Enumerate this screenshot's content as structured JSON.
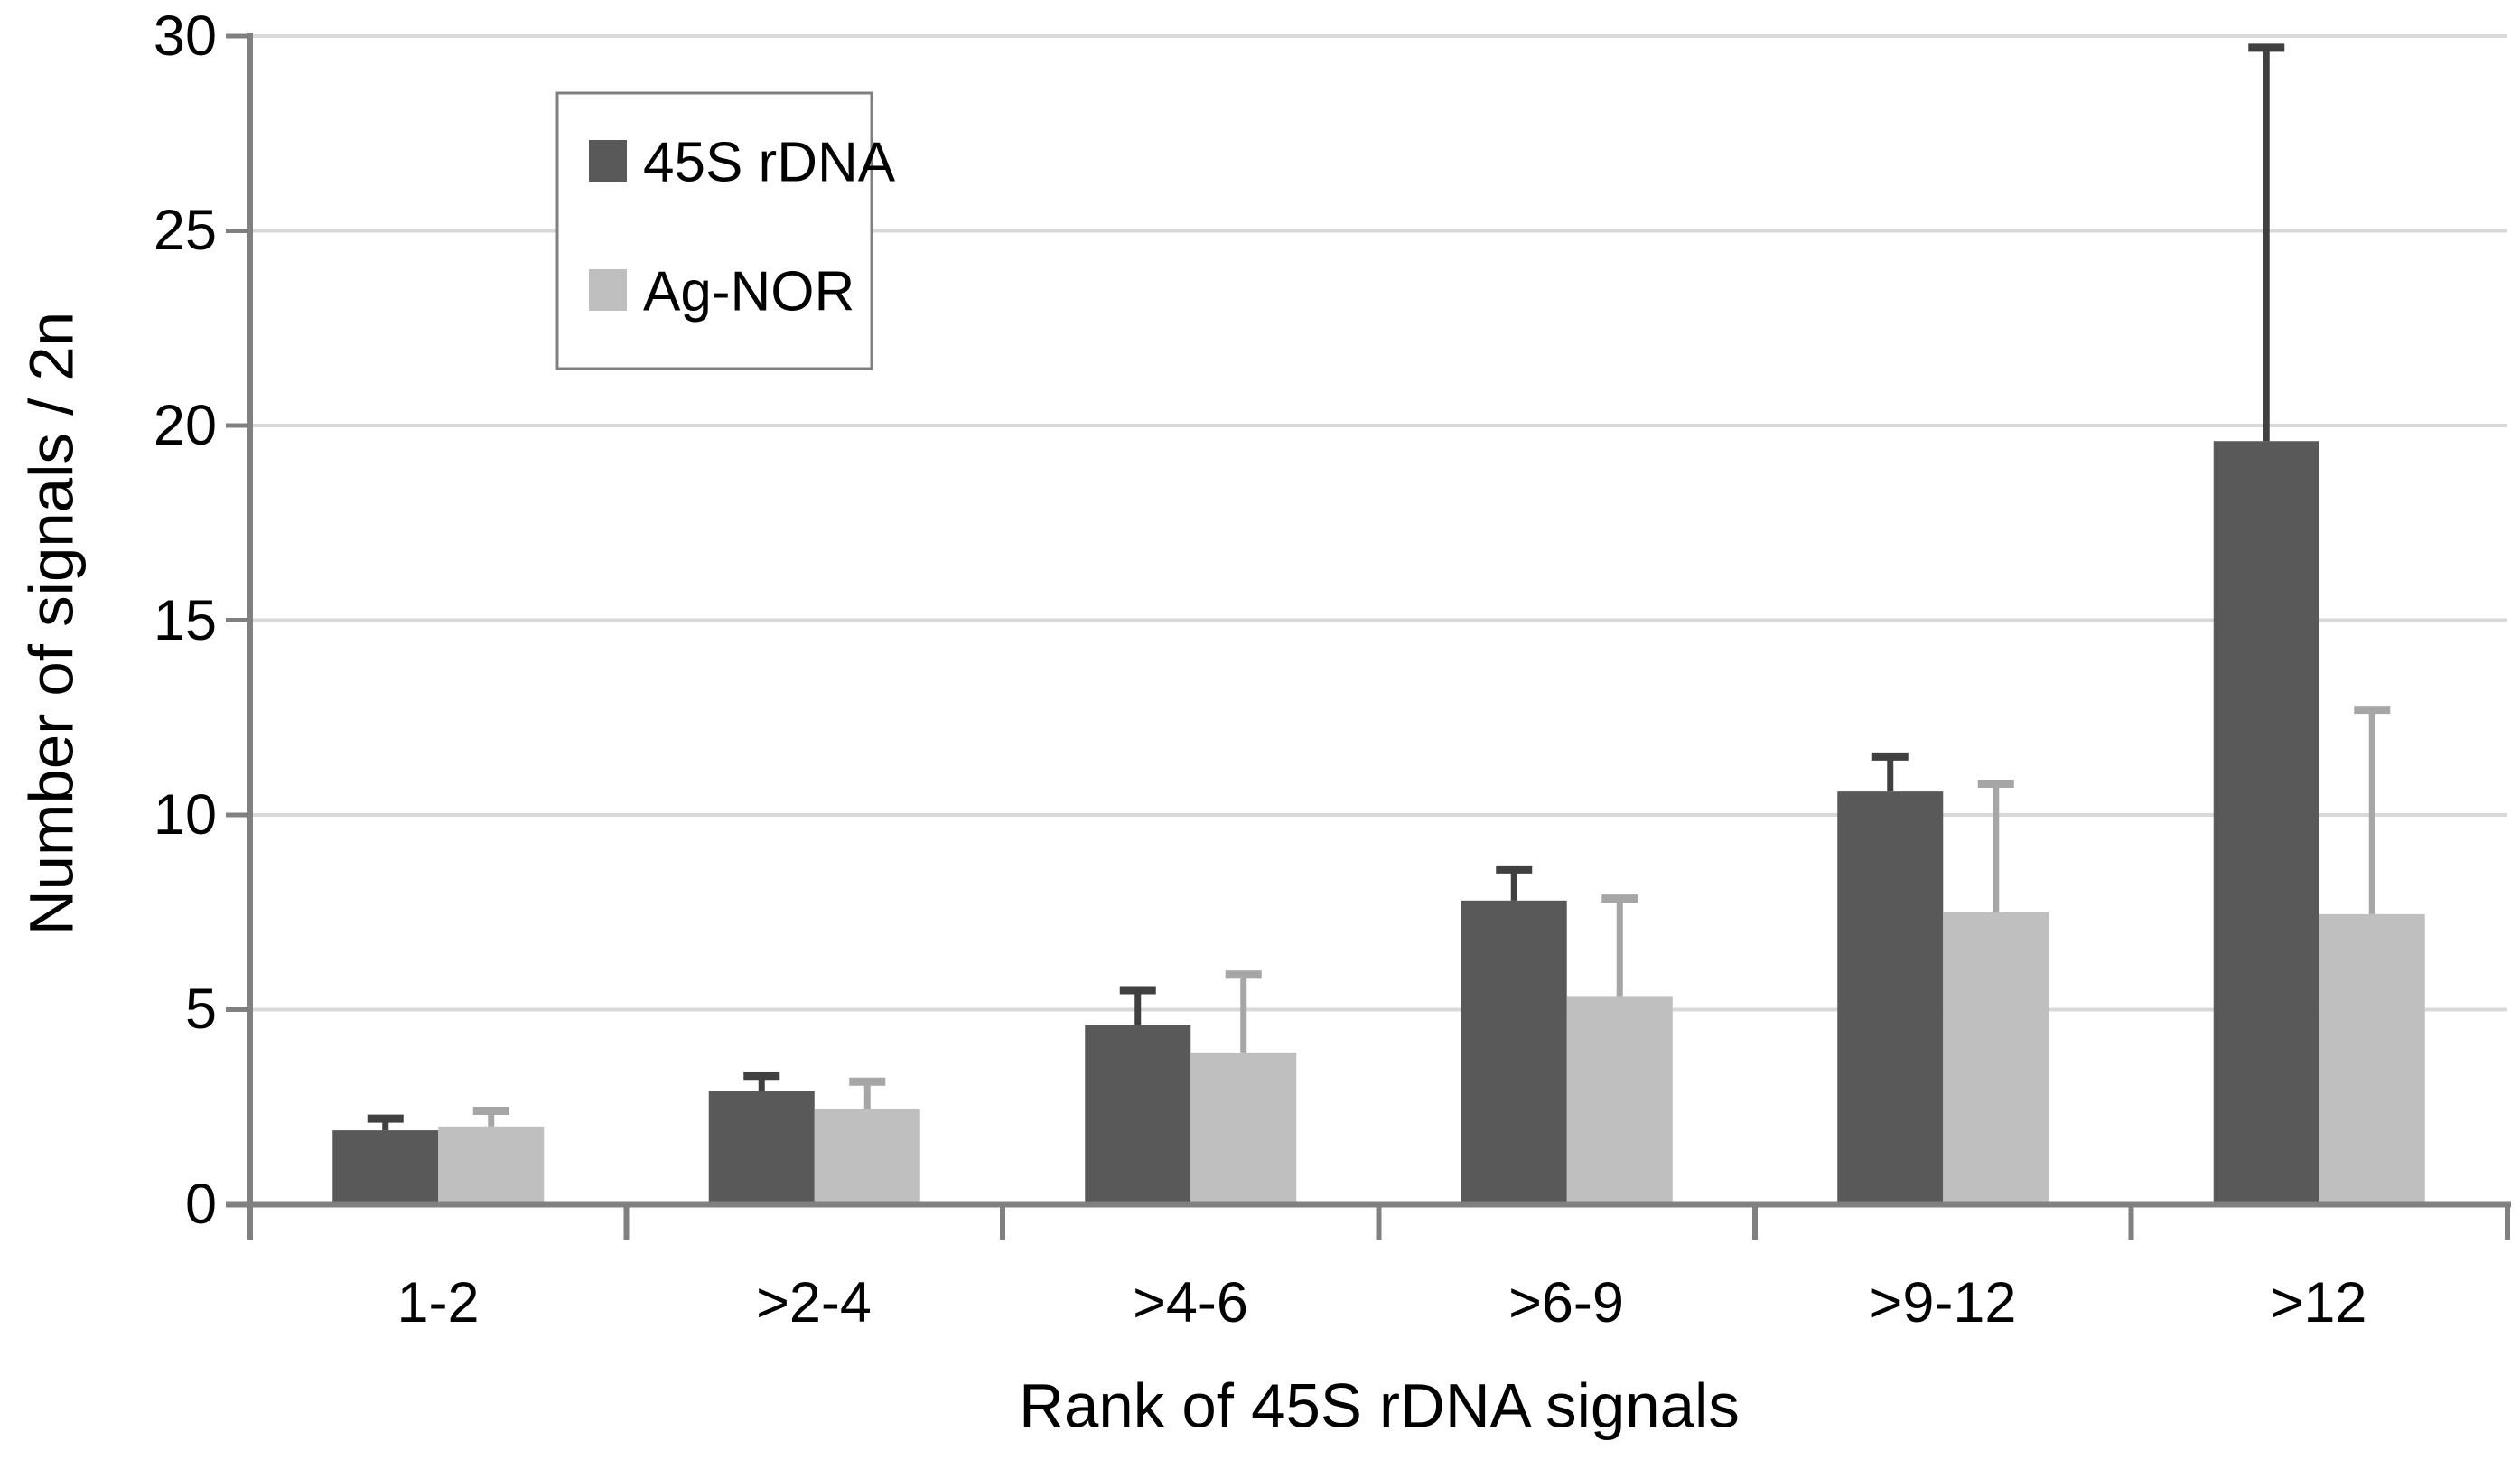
{
  "chart_data": {
    "type": "bar",
    "title": "",
    "xlabel": "Rank of 45S rDNA signals",
    "ylabel": "Number of signals / 2n",
    "categories": [
      "1-2",
      ">2-4",
      ">4-6",
      ">6-9",
      ">9-12",
      ">12"
    ],
    "ytick_labels": [
      "30",
      "25",
      "20",
      "15",
      "10",
      "5",
      "0"
    ],
    "yticks": [
      30,
      25,
      20,
      15,
      10,
      5,
      0
    ],
    "ylim": [
      0,
      30
    ],
    "grid": true,
    "legend_position": "upper-left-inside",
    "error_bars": "upper-only",
    "series": [
      {
        "name": "45S rDNA",
        "color": "#595959",
        "error_color": "#404040",
        "values": [
          1.9,
          2.9,
          4.6,
          7.8,
          10.6,
          19.6
        ],
        "error_up": [
          0.3,
          0.4,
          0.9,
          0.8,
          0.9,
          10.1
        ]
      },
      {
        "name": "Ag-NOR",
        "color": "#bfbfbf",
        "error_color": "#a6a6a6",
        "values": [
          2.0,
          2.45,
          3.9,
          5.35,
          7.5,
          7.45
        ],
        "error_up": [
          0.4,
          0.7,
          2.0,
          2.5,
          3.3,
          5.25
        ]
      }
    ],
    "colors": {
      "gridline": "#d9d9d9",
      "axis": "#808080",
      "text": "#000000",
      "legend_border": "#808080",
      "background": "#ffffff"
    }
  }
}
